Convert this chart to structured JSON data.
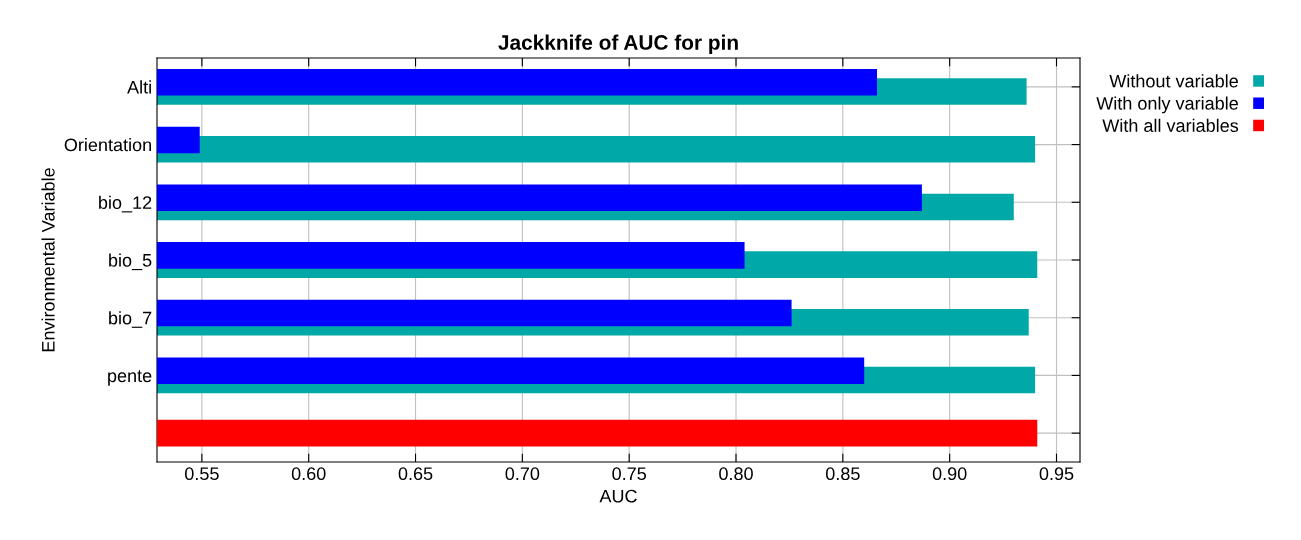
{
  "chart_data": {
    "type": "bar",
    "orientation": "horizontal",
    "title": "Jackknife of AUC for pin",
    "xlabel": "AUC",
    "ylabel": "Environmental Variable",
    "categories": [
      "Alti",
      "Orientation",
      "bio_12",
      "bio_5",
      "bio_7",
      "pente",
      null
    ],
    "series": [
      {
        "name": "Without variable",
        "color": "#00a8a8",
        "values": [
          0.936,
          0.94,
          0.93,
          0.941,
          0.937,
          0.94,
          null
        ]
      },
      {
        "name": "With only variable",
        "color": "#0000ff",
        "values": [
          0.866,
          0.549,
          0.887,
          0.804,
          0.826,
          0.86,
          null
        ]
      },
      {
        "name": "With all variables",
        "color": "#ff0000",
        "values": [
          null,
          null,
          null,
          null,
          null,
          null,
          0.941
        ]
      }
    ],
    "xlim": [
      0.529,
      0.961
    ],
    "xticks": [
      0.55,
      {
        "value": 0.6,
        "label": "0.60"
      },
      0.65,
      {
        "value": 0.7,
        "label": "0.70"
      },
      0.75,
      {
        "value": 0.8,
        "label": "0.80"
      },
      0.85,
      {
        "value": 0.9,
        "label": "0.90"
      },
      0.95
    ],
    "grid": true,
    "legend": "right"
  }
}
